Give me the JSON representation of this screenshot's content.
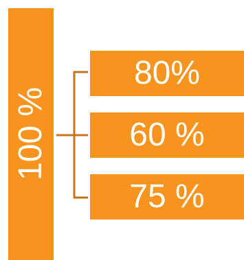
{
  "colors": {
    "fill": "#f7941d",
    "connector": "#c8731e",
    "text": "#ffffff"
  },
  "total": {
    "label": "100 %"
  },
  "parts": [
    {
      "label": "80%"
    },
    {
      "label": "60 %"
    },
    {
      "label": "75 %"
    }
  ]
}
